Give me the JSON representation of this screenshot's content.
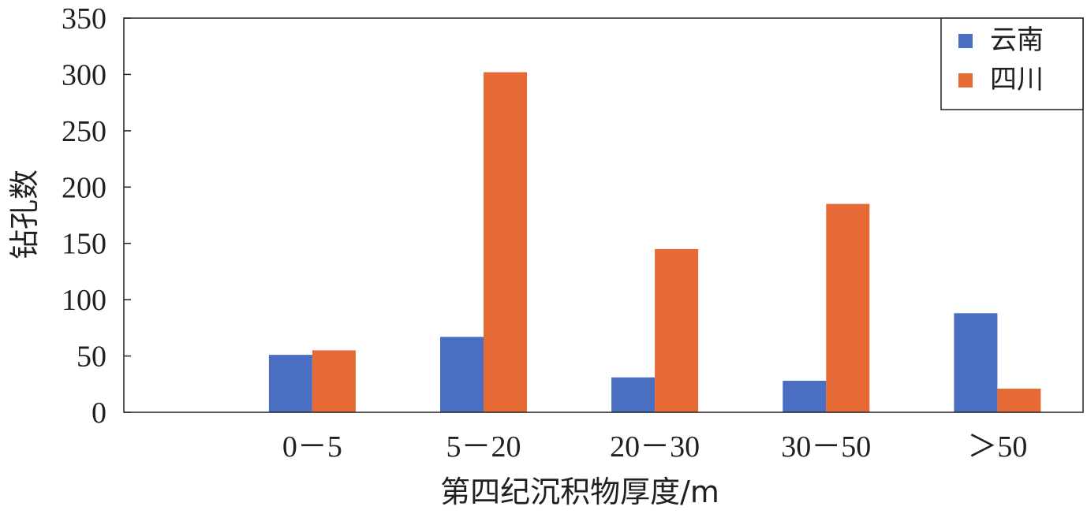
{
  "chart_data": {
    "type": "bar",
    "categories": [
      "0－5",
      "5－20",
      "20－30",
      "30－50",
      "＞50"
    ],
    "series": [
      {
        "name": "云南",
        "values": [
          51,
          67,
          31,
          28,
          88
        ],
        "color": "#4a6fc2"
      },
      {
        "name": "四川",
        "values": [
          55,
          302,
          145,
          185,
          21
        ],
        "color": "#e56a35"
      }
    ],
    "xlabel": "第四纪沉积物厚度/m",
    "ylabel": "钻孔数",
    "ylim": [
      0,
      350
    ],
    "yticks": [
      "0",
      "50",
      "100",
      "150",
      "200",
      "250",
      "300",
      "350"
    ],
    "legend_position": "top-right",
    "grid": false
  }
}
